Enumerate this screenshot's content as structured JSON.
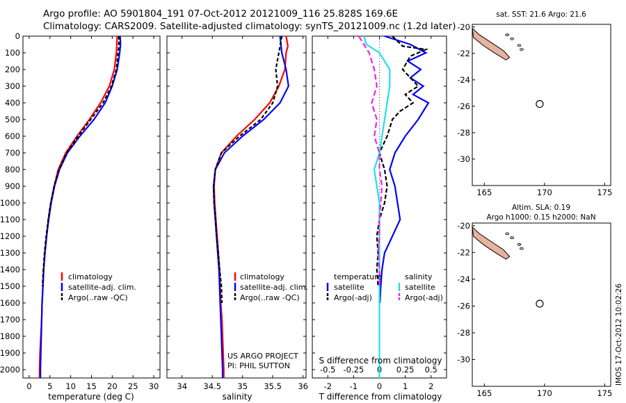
{
  "titles": {
    "line1": "Argo profile: AO 5901804_191 07-Oct-2012 20121009_116 25.828S 169.6E",
    "line2": "Climatology: CARS2009. Satellite-adjusted climatology: synTS_20121009.nc (1.2d later)"
  },
  "colors": {
    "climatology": "#ff0000",
    "satellite": "#0000ff",
    "argo": "#000000",
    "salinity_satellite": "#22e0e0",
    "salinity_argo": "#ee22ee",
    "land": "#e6b3a0"
  },
  "chart_data": [
    {
      "id": "temperature",
      "type": "line",
      "xlabel": "temperature (deg C)",
      "xticks": [
        0,
        5,
        10,
        15,
        20,
        25,
        30
      ],
      "xlim": [
        -1.5,
        31.5
      ],
      "ylim": [
        0,
        2050
      ],
      "yticks": [
        0,
        100,
        200,
        300,
        400,
        500,
        600,
        700,
        800,
        900,
        1000,
        1100,
        1200,
        1300,
        1400,
        1500,
        1600,
        1700,
        1800,
        1900,
        2000
      ],
      "legend": [
        "climatology",
        "satellite-adj. clim.",
        "Argo(..raw -QC)"
      ],
      "series": [
        {
          "name": "climatology",
          "color": "#ff0000",
          "dash": "",
          "points": [
            [
              21.2,
              0
            ],
            [
              21.0,
              100
            ],
            [
              20.5,
              200
            ],
            [
              19.3,
              300
            ],
            [
              17.2,
              400
            ],
            [
              14.5,
              500
            ],
            [
              11.5,
              600
            ],
            [
              8.8,
              700
            ],
            [
              7.0,
              800
            ],
            [
              6.0,
              900
            ],
            [
              5.2,
              1000
            ],
            [
              4.6,
              1100
            ],
            [
              4.2,
              1200
            ],
            [
              3.8,
              1300
            ],
            [
              3.5,
              1400
            ],
            [
              3.3,
              1500
            ],
            [
              3.1,
              1600
            ],
            [
              3.0,
              1700
            ],
            [
              2.8,
              1800
            ],
            [
              2.6,
              1900
            ],
            [
              2.5,
              2000
            ],
            [
              2.5,
              2050
            ]
          ]
        },
        {
          "name": "satellite-adj. clim.",
          "color": "#0000ff",
          "dash": "",
          "points": [
            [
              21.9,
              0
            ],
            [
              22.0,
              50
            ],
            [
              21.8,
              100
            ],
            [
              21.2,
              200
            ],
            [
              20.0,
              300
            ],
            [
              18.3,
              400
            ],
            [
              15.6,
              500
            ],
            [
              12.2,
              600
            ],
            [
              9.2,
              700
            ],
            [
              7.3,
              800
            ],
            [
              6.1,
              900
            ],
            [
              5.3,
              1000
            ],
            [
              4.7,
              1100
            ],
            [
              4.2,
              1200
            ],
            [
              3.8,
              1300
            ],
            [
              3.5,
              1400
            ],
            [
              3.3,
              1500
            ],
            [
              3.1,
              1600
            ],
            [
              3.0,
              1700
            ],
            [
              2.9,
              1800
            ],
            [
              2.8,
              1900
            ],
            [
              2.7,
              2000
            ],
            [
              2.7,
              2050
            ]
          ]
        },
        {
          "name": "Argo(..raw -QC)",
          "color": "#000000",
          "dash": "5,3",
          "points": [
            [
              21.6,
              0
            ],
            [
              21.6,
              60
            ],
            [
              21.4,
              100
            ],
            [
              21.0,
              200
            ],
            [
              19.8,
              300
            ],
            [
              17.8,
              400
            ],
            [
              14.8,
              500
            ],
            [
              11.8,
              600
            ],
            [
              9.0,
              700
            ],
            [
              7.2,
              800
            ],
            [
              6.0,
              900
            ],
            [
              5.2,
              1000
            ],
            [
              4.6,
              1100
            ],
            [
              4.1,
              1200
            ],
            [
              3.7,
              1300
            ],
            [
              3.4,
              1400
            ],
            [
              3.2,
              1500
            ]
          ]
        }
      ]
    },
    {
      "id": "salinity",
      "type": "line",
      "xlabel": "salinity",
      "xticks": [
        34,
        34.5,
        35,
        35.5,
        36
      ],
      "xlim": [
        33.75,
        36.05
      ],
      "ylim": [
        0,
        2050
      ],
      "legend": [
        "climatology",
        "satellite-adj. clim.",
        "Argo(..raw -QC)"
      ],
      "annotation": [
        "US ARGO PROJECT",
        "PI: PHIL SUTTON"
      ],
      "series": [
        {
          "name": "climatology",
          "color": "#ff0000",
          "dash": "",
          "points": [
            [
              35.72,
              0
            ],
            [
              35.75,
              60
            ],
            [
              35.72,
              100
            ],
            [
              35.7,
              200
            ],
            [
              35.6,
              300
            ],
            [
              35.45,
              400
            ],
            [
              35.2,
              500
            ],
            [
              34.9,
              600
            ],
            [
              34.65,
              700
            ],
            [
              34.55,
              800
            ],
            [
              34.53,
              900
            ],
            [
              34.54,
              1000
            ],
            [
              34.56,
              1100
            ],
            [
              34.58,
              1200
            ],
            [
              34.6,
              1300
            ],
            [
              34.62,
              1400
            ],
            [
              34.63,
              1500
            ],
            [
              34.64,
              1600
            ],
            [
              34.66,
              1700
            ],
            [
              34.67,
              1800
            ],
            [
              34.68,
              1900
            ],
            [
              34.69,
              2000
            ],
            [
              34.69,
              2050
            ]
          ]
        },
        {
          "name": "satellite-adj. clim.",
          "color": "#0000ff",
          "dash": "",
          "points": [
            [
              35.62,
              0
            ],
            [
              35.65,
              100
            ],
            [
              35.72,
              200
            ],
            [
              35.76,
              300
            ],
            [
              35.62,
              400
            ],
            [
              35.35,
              500
            ],
            [
              35.0,
              600
            ],
            [
              34.7,
              700
            ],
            [
              34.55,
              800
            ],
            [
              34.52,
              900
            ],
            [
              34.53,
              1000
            ],
            [
              34.55,
              1100
            ],
            [
              34.57,
              1200
            ],
            [
              34.59,
              1300
            ],
            [
              34.61,
              1400
            ],
            [
              34.62,
              1500
            ],
            [
              34.63,
              1600
            ],
            [
              34.64,
              1700
            ],
            [
              34.65,
              1800
            ],
            [
              34.66,
              1900
            ],
            [
              34.67,
              2000
            ],
            [
              34.67,
              2050
            ]
          ]
        },
        {
          "name": "Argo(..raw -QC)",
          "color": "#000000",
          "dash": "5,3",
          "points": [
            [
              35.65,
              0
            ],
            [
              35.6,
              100
            ],
            [
              35.55,
              200
            ],
            [
              35.58,
              300
            ],
            [
              35.5,
              400
            ],
            [
              35.3,
              500
            ],
            [
              34.95,
              600
            ],
            [
              34.65,
              700
            ],
            [
              34.55,
              800
            ],
            [
              34.52,
              900
            ],
            [
              34.53,
              1000
            ],
            [
              34.55,
              1100
            ],
            [
              34.57,
              1200
            ],
            [
              34.6,
              1300
            ],
            [
              34.62,
              1400
            ],
            [
              34.65,
              1500
            ],
            [
              34.66,
              1600
            ]
          ]
        }
      ]
    },
    {
      "id": "difference",
      "type": "line",
      "xlabel": "T difference from climatology",
      "xlabel_top": "S difference from climatology",
      "xticks": [
        -2,
        -1,
        0,
        1,
        2
      ],
      "xticks_top_labels": [
        "-0.5",
        "-0.25",
        "0",
        "0.25",
        "0.5"
      ],
      "xlim": [
        -2.6,
        2.6
      ],
      "ylim": [
        0,
        2050
      ],
      "legend_temperature": {
        "title": "temperature",
        "items": [
          "satellite",
          "Argo(-adj)"
        ]
      },
      "legend_salinity": {
        "title": "salinity",
        "items": [
          "satellite",
          "Argo(-adj)"
        ]
      },
      "series": [
        {
          "name": "temperature satellite",
          "color": "#0000ff",
          "dash": "",
          "points": [
            [
              0.2,
              0
            ],
            [
              1.2,
              50
            ],
            [
              1.8,
              100
            ],
            [
              1.1,
              150
            ],
            [
              1.6,
              200
            ],
            [
              1.2,
              250
            ],
            [
              1.7,
              300
            ],
            [
              1.3,
              350
            ],
            [
              1.9,
              400
            ],
            [
              1.5,
              500
            ],
            [
              1.0,
              600
            ],
            [
              0.6,
              700
            ],
            [
              0.4,
              800
            ],
            [
              0.6,
              900
            ],
            [
              0.7,
              1000
            ],
            [
              0.8,
              1100
            ],
            [
              0.5,
              1200
            ],
            [
              0.2,
              1300
            ],
            [
              0.1,
              1400
            ],
            [
              0.05,
              1500
            ],
            [
              0.02,
              1600
            ]
          ]
        },
        {
          "name": "temperature Argo(-adj)",
          "color": "#000000",
          "dash": "6,3",
          "points": [
            [
              0.5,
              0
            ],
            [
              0.9,
              60
            ],
            [
              1.8,
              80
            ],
            [
              1.2,
              120
            ],
            [
              0.9,
              200
            ],
            [
              1.5,
              300
            ],
            [
              1.0,
              350
            ],
            [
              1.3,
              400
            ],
            [
              0.8,
              450
            ],
            [
              0.5,
              500
            ],
            [
              0.3,
              600
            ],
            [
              0.0,
              700
            ],
            [
              0.2,
              800
            ],
            [
              0.3,
              900
            ],
            [
              0.2,
              1000
            ],
            [
              0.0,
              1100
            ],
            [
              -0.1,
              1200
            ],
            [
              -0.05,
              1300
            ],
            [
              -0.1,
              1400
            ],
            [
              -0.05,
              1500
            ]
          ]
        },
        {
          "name": "salinity satellite",
          "color": "#22e0e0",
          "dash": "",
          "points": [
            [
              -0.6,
              0
            ],
            [
              -0.5,
              50
            ],
            [
              0.0,
              100
            ],
            [
              0.4,
              200
            ],
            [
              0.4,
              300
            ],
            [
              0.3,
              400
            ],
            [
              0.2,
              500
            ],
            [
              0.1,
              600
            ],
            [
              0.0,
              700
            ],
            [
              -0.2,
              800
            ],
            [
              -0.1,
              900
            ],
            [
              0.0,
              1000
            ],
            [
              0.0,
              1200
            ],
            [
              0.0,
              1400
            ],
            [
              0.0,
              1600
            ],
            [
              0.0,
              1800
            ],
            [
              0.0,
              2000
            ],
            [
              0.0,
              2050
            ]
          ]
        },
        {
          "name": "salinity Argo(-adj)",
          "color": "#ee22ee",
          "dash": "8,4",
          "points": [
            [
              -0.8,
              0
            ],
            [
              -0.4,
              100
            ],
            [
              -0.2,
              200
            ],
            [
              -0.1,
              300
            ],
            [
              -0.3,
              400
            ],
            [
              -0.1,
              500
            ],
            [
              -0.2,
              600
            ],
            [
              0.0,
              700
            ],
            [
              0.0,
              800
            ],
            [
              0.1,
              900
            ],
            [
              0.05,
              1000
            ],
            [
              0.0,
              1100
            ],
            [
              0.0,
              1200
            ],
            [
              -0.05,
              1300
            ],
            [
              0.0,
              1400
            ],
            [
              0.0,
              1500
            ]
          ]
        }
      ]
    },
    {
      "id": "sst_map",
      "type": "heatmap",
      "title": "sat. SST: 21.6 Argo: 21.6",
      "xticks": [
        165,
        170,
        175
      ],
      "yticks": [
        -20,
        -22,
        -24,
        -26,
        -28,
        -30
      ],
      "xlim": [
        164,
        175.5
      ],
      "ylim": [
        -32,
        -19.8
      ],
      "marker": {
        "lon": 169.6,
        "lat": -25.828
      }
    },
    {
      "id": "sla_map",
      "type": "heatmap",
      "title_line1": "Altim. SLA: 0.19",
      "title_line2": "Argo h1000: 0.15 h2000: NaN",
      "xticks": [
        165,
        170,
        175
      ],
      "yticks": [
        -20,
        -22,
        -24,
        -26,
        -28,
        -30
      ],
      "xlim": [
        164,
        175.5
      ],
      "ylim": [
        -32,
        -19.8
      ],
      "marker": {
        "lon": 169.6,
        "lat": -25.828
      }
    }
  ],
  "side_label": "IMOS 17-Oct-2012 10:02:26"
}
